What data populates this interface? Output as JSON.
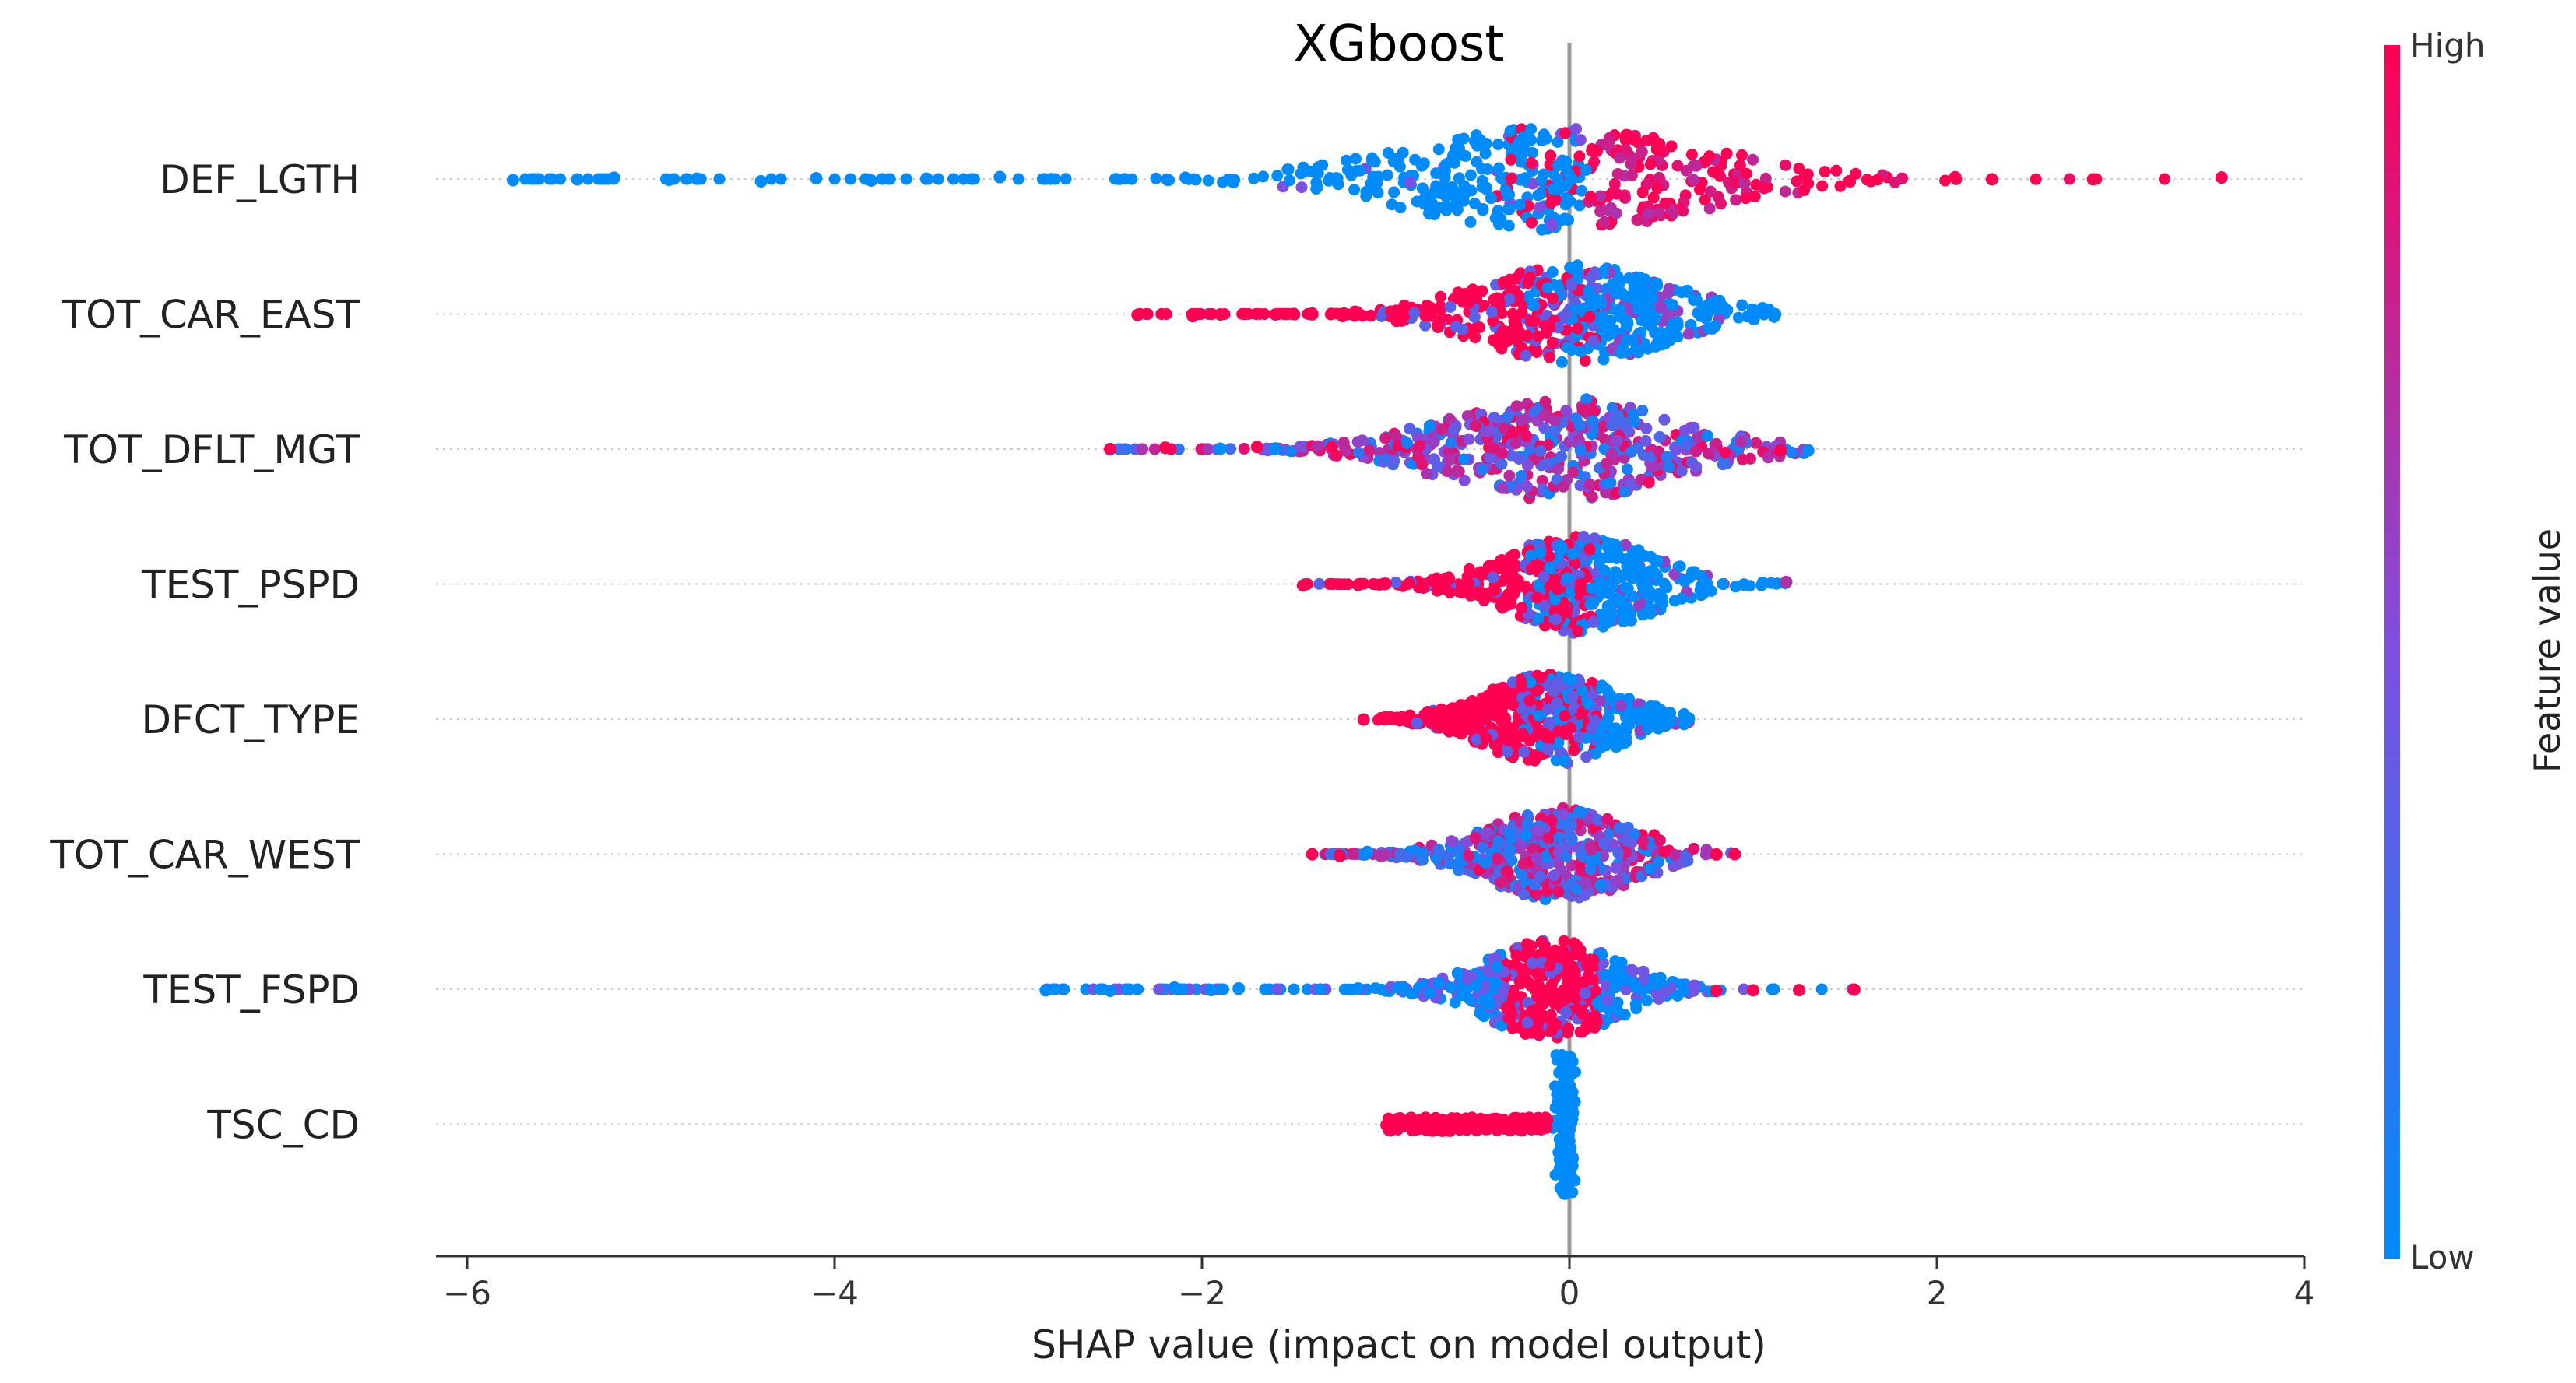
{
  "chart_data": {
    "type": "scatter",
    "title": "XGboost",
    "xlabel": "SHAP value (impact on model output)",
    "ylabel": "",
    "xlim": [
      -6.2,
      4.0
    ],
    "xticks": [
      -6,
      -4,
      -2,
      0,
      2,
      4
    ],
    "xtick_labels": [
      "−6",
      "−4",
      "−2",
      "0",
      "2",
      "4"
    ],
    "grid": false,
    "zero_line": true,
    "features": [
      {
        "name": "DEF_LGTH",
        "min": -5.75,
        "max": 3.55,
        "core": [
          -1.2,
          1.1
        ],
        "spread": 0.95,
        "color_trend": "low-left-high-right",
        "outliers": [
          [
            -5.75,
            0.0
          ],
          [
            -5.4,
            0.0
          ],
          [
            -5.2,
            0.0
          ],
          [
            -4.9,
            0.0
          ],
          [
            -4.75,
            0.0
          ],
          [
            -4.4,
            0.0
          ],
          [
            -4.1,
            0.0
          ],
          [
            -3.8,
            0.0
          ],
          [
            -3.5,
            0.0
          ],
          [
            -3.1,
            0.0
          ],
          [
            2.1,
            1.0
          ],
          [
            2.3,
            1.0
          ],
          [
            2.85,
            1.0
          ],
          [
            3.55,
            1.0
          ]
        ]
      },
      {
        "name": "TOT_CAR_EAST",
        "min": -2.35,
        "max": 1.12,
        "core": [
          -0.7,
          0.75
        ],
        "spread": 0.9,
        "color_trend": "high-left-low-right",
        "outliers": [
          [
            -2.35,
            1.0
          ],
          [
            -2.05,
            1.0
          ],
          [
            -1.9,
            1.0
          ],
          [
            -1.6,
            1.0
          ],
          [
            -1.4,
            1.0
          ],
          [
            1.0,
            0.0
          ],
          [
            1.12,
            0.0
          ]
        ]
      },
      {
        "name": "TOT_DFLT_MGT",
        "min": -2.5,
        "max": 1.3,
        "core": [
          -0.9,
          0.8
        ],
        "spread": 0.95,
        "color_trend": "mixed",
        "outliers": [
          [
            -2.5,
            1.0
          ],
          [
            -2.2,
            1.0
          ],
          [
            -1.9,
            0.0
          ],
          [
            -1.7,
            1.0
          ],
          [
            -1.6,
            0.0
          ],
          [
            1.15,
            1.0
          ],
          [
            1.3,
            0.0
          ]
        ]
      },
      {
        "name": "TEST_PSPD",
        "min": -1.45,
        "max": 1.18,
        "core": [
          -0.5,
          0.6
        ],
        "spread": 0.9,
        "color_trend": "high-left-low-right",
        "outliers": [
          [
            -1.45,
            1.0
          ],
          [
            -1.15,
            1.0
          ],
          [
            -1.0,
            1.0
          ],
          [
            0.95,
            0.0
          ],
          [
            1.18,
            0.7
          ]
        ]
      },
      {
        "name": "DFCT_TYPE",
        "min": -1.12,
        "max": 0.65,
        "core": [
          -0.6,
          0.4
        ],
        "spread": 0.85,
        "color_trend": "high-left-low-right",
        "outliers": [
          [
            -1.12,
            1.0
          ],
          [
            -1.0,
            1.0
          ],
          [
            0.55,
            0.0
          ],
          [
            0.65,
            0.0
          ]
        ]
      },
      {
        "name": "TOT_CAR_WEST",
        "min": -1.4,
        "max": 0.9,
        "core": [
          -0.6,
          0.5
        ],
        "spread": 0.85,
        "color_trend": "mixed",
        "outliers": [
          [
            -1.4,
            1.0
          ],
          [
            -1.25,
            1.0
          ],
          [
            -1.1,
            0.0
          ],
          [
            0.8,
            1.0
          ],
          [
            0.9,
            1.0
          ]
        ]
      },
      {
        "name": "TEST_FSPD",
        "min": -2.85,
        "max": 1.55,
        "core": [
          -0.6,
          0.4
        ],
        "spread": 0.9,
        "color_trend": "high-center",
        "outliers": [
          [
            -2.85,
            0.0
          ],
          [
            -2.5,
            0.0
          ],
          [
            -2.15,
            0.0
          ],
          [
            -1.95,
            0.0
          ],
          [
            -1.8,
            0.0
          ],
          [
            -1.15,
            0.0
          ],
          [
            0.8,
            1.0
          ],
          [
            1.0,
            1.0
          ],
          [
            1.25,
            1.0
          ],
          [
            1.55,
            1.0
          ]
        ]
      },
      {
        "name": "TSC_CD",
        "min": -1.02,
        "max": 0.05,
        "core": [
          -1.0,
          -0.05
        ],
        "spread": 0.25,
        "color_trend": "tsc",
        "outliers": []
      }
    ],
    "colorbar": {
      "label": "Feature value",
      "high_label": "High",
      "low_label": "Low",
      "high_color": "#ff0052",
      "low_color": "#008bfb"
    }
  }
}
